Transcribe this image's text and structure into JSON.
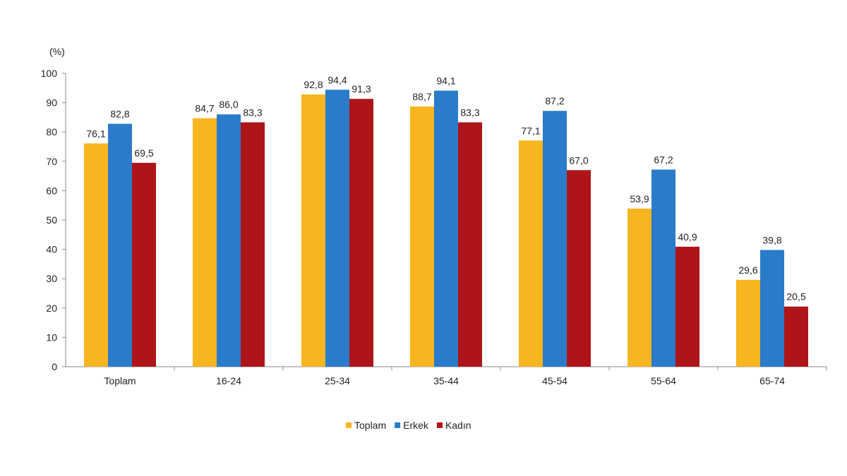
{
  "chart_data": {
    "type": "bar",
    "ylabel": "(%)",
    "ylim": [
      0,
      100
    ],
    "yticks": [
      0,
      10,
      20,
      30,
      40,
      50,
      60,
      70,
      80,
      90,
      100
    ],
    "categories": [
      "Toplam",
      "16-24",
      "25-34",
      "35-44",
      "45-54",
      "55-64",
      "65-74"
    ],
    "series": [
      {
        "name": "Toplam",
        "color": "#F7B520",
        "values": [
          76.1,
          84.7,
          92.8,
          88.7,
          77.1,
          53.9,
          29.6
        ],
        "labels": [
          "76,1",
          "84,7",
          "92,8",
          "88,7",
          "77,1",
          "53,9",
          "29,6"
        ]
      },
      {
        "name": "Erkek",
        "color": "#2A7BC9",
        "values": [
          82.8,
          86.0,
          94.4,
          94.1,
          87.2,
          67.2,
          39.8
        ],
        "labels": [
          "82,8",
          "86,0",
          "94,4",
          "94,1",
          "87,2",
          "67,2",
          "39,8"
        ]
      },
      {
        "name": "Kadın",
        "color": "#AE1518",
        "values": [
          69.5,
          83.3,
          91.3,
          83.3,
          67.0,
          40.9,
          20.5
        ],
        "labels": [
          "69,5",
          "83,3",
          "91,3",
          "83,3",
          "67,0",
          "40,9",
          "20,5"
        ]
      }
    ],
    "grid": false,
    "legend": "bottom-center"
  }
}
